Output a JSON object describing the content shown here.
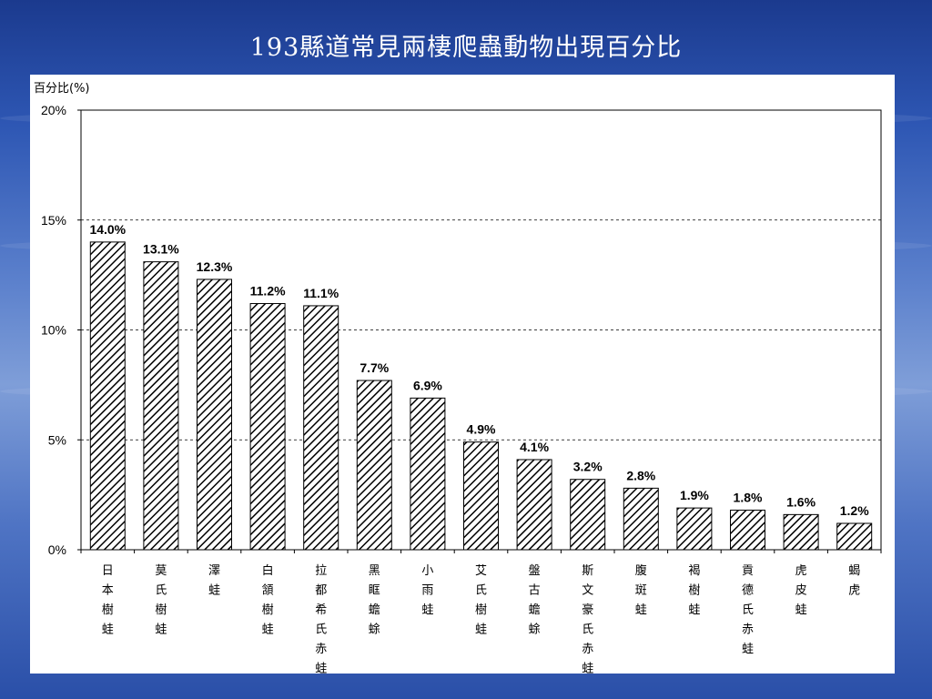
{
  "slide": {
    "title": "193縣道常見兩棲爬蟲動物出現百分比"
  },
  "chart_data": {
    "type": "bar",
    "ylabel": "百分比(%)",
    "ylim": [
      0,
      20
    ],
    "yticks": [
      "0%",
      "5%",
      "10%",
      "15%",
      "20%"
    ],
    "ytick_values": [
      0,
      5,
      10,
      15,
      20
    ],
    "grid": "dashed horizontal",
    "categories": [
      "日本樹蛙",
      "莫氏樹蛙",
      "澤蛙",
      "白頷樹蛙",
      "拉都希氏赤蛙",
      "黑眶蟾蜍",
      "小雨蛙",
      "艾氏樹蛙",
      "盤古蟾蜍",
      "斯文豪氏赤蛙",
      "腹斑蛙",
      "褐樹蛙",
      "貢德氏赤蛙",
      "虎皮蛙",
      "蝎虎"
    ],
    "values": [
      14.0,
      13.1,
      12.3,
      11.2,
      11.1,
      7.7,
      6.9,
      4.9,
      4.1,
      3.2,
      2.8,
      1.9,
      1.8,
      1.6,
      1.2
    ],
    "data_labels": [
      "14.0%",
      "13.1%",
      "12.3%",
      "11.2%",
      "11.1%",
      "7.7%",
      "6.9%",
      "4.9%",
      "4.1%",
      "3.2%",
      "2.8%",
      "1.9%",
      "1.8%",
      "1.6%",
      "1.2%"
    ],
    "bar_fill": "diagonal-hatch"
  }
}
